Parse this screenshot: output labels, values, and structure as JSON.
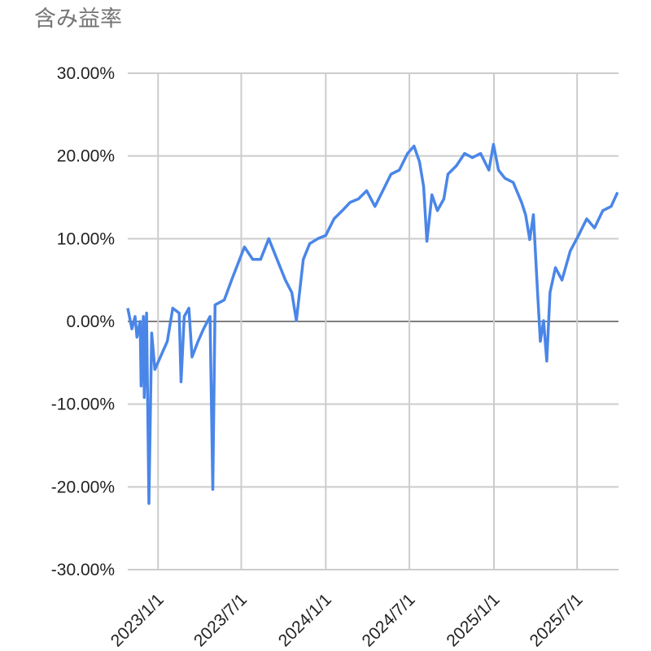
{
  "chart_data": {
    "type": "line",
    "title": "含み益率",
    "x": [
      "2022/10/27",
      "2022/11/5",
      "2022/11/12",
      "2022/11/16",
      "2022/11/23",
      "2022/11/25",
      "2022/11/30",
      "2022/12/2",
      "2022/12/7",
      "2022/12/12",
      "2022/12/18",
      "2022/12/25",
      "2023/1/6",
      "2023/1/21",
      "2023/2/2",
      "2023/2/16",
      "2023/2/20",
      "2023/2/27",
      "2023/3/9",
      "2023/3/16",
      "2023/3/29",
      "2023/4/10",
      "2023/4/24",
      "2023/4/30",
      "2023/5/5",
      "2023/5/25",
      "2023/6/10",
      "2023/6/24",
      "2023/7/8",
      "2023/7/26",
      "2023/8/12",
      "2023/8/30",
      "2023/9/17",
      "2023/10/5",
      "2023/10/19",
      "2023/10/29",
      "2023/11/13",
      "2023/11/27",
      "2023/12/15",
      "2024/1/1",
      "2024/1/19",
      "2024/2/6",
      "2024/2/23",
      "2024/3/12",
      "2024/3/30",
      "2024/4/17",
      "2024/5/4",
      "2024/5/22",
      "2024/6/9",
      "2024/6/27",
      "2024/7/11",
      "2024/7/23",
      "2024/8/1",
      "2024/8/8",
      "2024/8/19",
      "2024/8/31",
      "2024/9/14",
      "2024/9/23",
      "2024/10/11",
      "2024/10/29",
      "2024/11/15",
      "2024/12/3",
      "2024/12/21",
      "2024/12/31",
      "2025/1/11",
      "2025/1/25",
      "2025/2/12",
      "2025/3/2",
      "2025/3/11",
      "2025/3/20",
      "2025/3/28",
      "2025/4/6",
      "2025/4/12",
      "2025/4/19",
      "2025/4/26",
      "2025/5/3",
      "2025/5/15",
      "2025/5/29",
      "2025/6/16",
      "2025/7/4",
      "2025/7/22",
      "2025/8/8",
      "2025/8/26",
      "2025/9/13",
      "2025/9/27"
    ],
    "series": [
      {
        "color": "#4a86e8",
        "values": [
          1.6,
          -0.9,
          0.6,
          -1.9,
          0,
          -7.8,
          0.6,
          -9.2,
          1,
          -22,
          -1.4,
          -5.8,
          -4.3,
          -2.4,
          1.6,
          1,
          -7.3,
          0.6,
          1.6,
          -4.3,
          -2.4,
          -0.9,
          0.6,
          -20.3,
          2,
          2.6,
          5,
          7,
          9,
          7.5,
          7.5,
          10,
          7.5,
          5,
          3.5,
          0.1,
          7.5,
          9.4,
          10,
          10.4,
          12.4,
          13.4,
          14.4,
          14.8,
          15.8,
          13.9,
          15.8,
          17.8,
          18.3,
          20.3,
          21.2,
          19.3,
          16.3,
          9.7,
          15.3,
          13.4,
          14.8,
          17.8,
          18.8,
          20.3,
          19.8,
          20.3,
          18.3,
          21.4,
          18.3,
          17.3,
          16.8,
          14.4,
          12.9,
          9.9,
          12.9,
          3.5,
          -2.4,
          0.1,
          -4.8,
          3.5,
          6.5,
          5,
          8.5,
          10.4,
          12.4,
          11.3,
          13.4,
          13.9,
          15.6
        ]
      }
    ],
    "xlim": [
      "2022/10/27",
      "2025/9/29"
    ],
    "xticks": [
      "2023/1/1",
      "2023/7/1",
      "2024/1/1",
      "2024/7/1",
      "2025/1/1",
      "2025/7/1"
    ],
    "ylim": [
      -30,
      30
    ],
    "yticks": [
      {
        "value": -30,
        "label": "-30.00%"
      },
      {
        "value": -20,
        "label": "-20.00%"
      },
      {
        "value": -10,
        "label": "-10.00%"
      },
      {
        "value": 0,
        "label": "0.00%"
      },
      {
        "value": 10,
        "label": "10.00%"
      },
      {
        "value": 20,
        "label": "20.00%"
      },
      {
        "value": 30,
        "label": "30.00%"
      }
    ],
    "grid": true
  }
}
